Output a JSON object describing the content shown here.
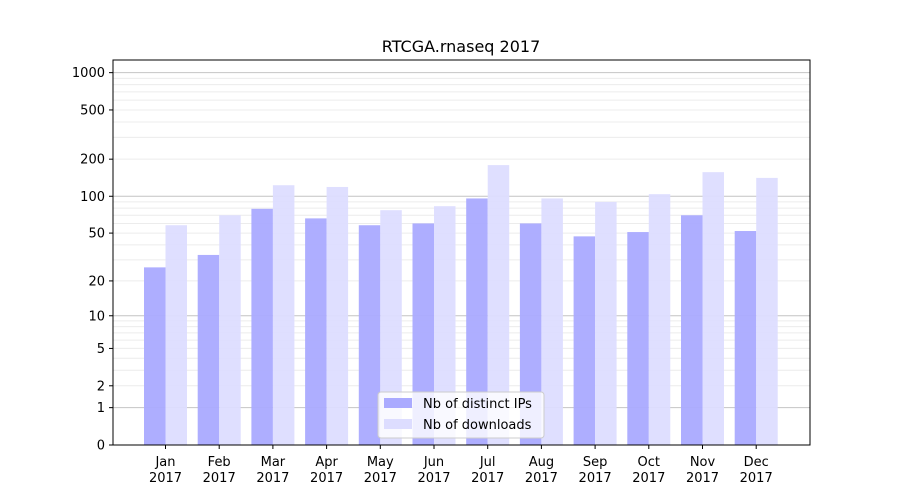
{
  "chart_data": {
    "type": "bar",
    "title": "RTCGA.rnaseq 2017",
    "xlabel": "",
    "ylabel": "",
    "y_scale": "log(1+x)",
    "ylim": [
      0,
      1300
    ],
    "y_ticks": [
      0,
      1,
      2,
      5,
      10,
      20,
      50,
      100,
      200,
      500,
      1000
    ],
    "grid": true,
    "legend_position": "bottom-center",
    "categories": [
      "Jan\n2017",
      "Feb\n2017",
      "Mar\n2017",
      "Apr\n2017",
      "May\n2017",
      "Jun\n2017",
      "Jul\n2017",
      "Aug\n2017",
      "Sep\n2017",
      "Oct\n2017",
      "Nov\n2017",
      "Dec\n2017"
    ],
    "series": [
      {
        "name": "Nb of distinct IPs",
        "color": "#aaaaff",
        "values": [
          26,
          33,
          79,
          66,
          58,
          60,
          96,
          60,
          47,
          51,
          70,
          52
        ]
      },
      {
        "name": "Nb of downloads",
        "color": "#ddddff",
        "values": [
          58,
          70,
          123,
          119,
          77,
          83,
          179,
          96,
          90,
          104,
          157,
          141
        ]
      }
    ]
  }
}
